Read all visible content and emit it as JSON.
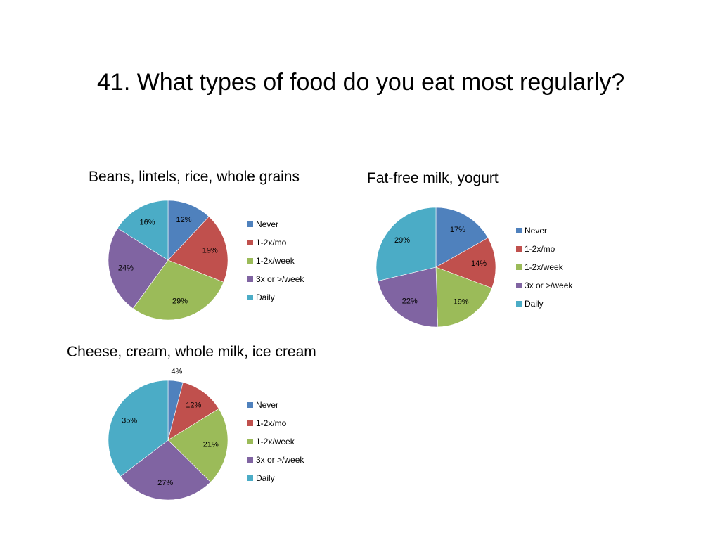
{
  "slide": {
    "title": "41. What types of food do you eat most regularly?"
  },
  "colors": {
    "Never": "#4F81BD",
    "1-2x/mo": "#C0504D",
    "1-2x/week": "#9BBB59",
    "3x or >/week": "#8064A2",
    "Daily": "#4BACC6"
  },
  "chart_data": [
    {
      "type": "pie",
      "title": "Beans, lintels, rice, whole grains",
      "categories": [
        "Never",
        "1-2x/mo",
        "1-2x/week",
        "3x or >/week",
        "Daily"
      ],
      "values": [
        12,
        19,
        29,
        24,
        16
      ],
      "labels": [
        "12%",
        "19%",
        "29%",
        "24%",
        "16%"
      ],
      "legend_position": "right"
    },
    {
      "type": "pie",
      "title": "Fat-free milk, yogurt",
      "categories": [
        "Never",
        "1-2x/mo",
        "1-2x/week",
        "3x or >/week",
        "Daily"
      ],
      "values": [
        17,
        14,
        19,
        22,
        29
      ],
      "labels": [
        "17%",
        "14%",
        "19%",
        "22%",
        "29%"
      ],
      "legend_position": "right"
    },
    {
      "type": "pie",
      "title": "Cheese, cream, whole milk, ice cream",
      "categories": [
        "Never",
        "1-2x/mo",
        "1-2x/week",
        "3x or >/week",
        "Daily"
      ],
      "values": [
        4,
        12,
        21,
        27,
        35
      ],
      "labels": [
        "4%",
        "12%",
        "21%",
        "27%",
        "35%"
      ],
      "legend_position": "right"
    }
  ]
}
